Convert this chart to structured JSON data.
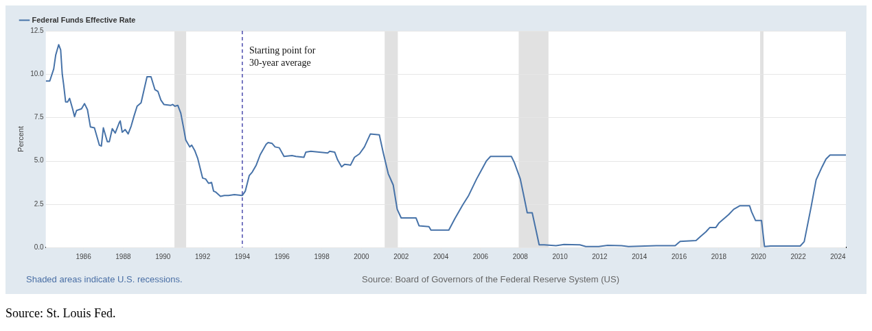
{
  "chart_data": {
    "type": "line",
    "ylabel": "Percent",
    "legend": "top left",
    "grid": "y",
    "xlim": [
      1984.1,
      2024.4
    ],
    "xticks": [
      1986,
      1988,
      1990,
      1992,
      1994,
      1996,
      1998,
      2000,
      2002,
      2004,
      2006,
      2008,
      2010,
      2012,
      2014,
      2016,
      2018,
      2020,
      2022,
      2024
    ],
    "ylim": [
      0,
      12.5
    ],
    "yticks": [
      {
        "value": 0,
        "label": "0.0"
      },
      2.5,
      {
        "value": 5,
        "label": "5.0"
      },
      7.5,
      {
        "value": 10,
        "label": "10.0"
      },
      12.5
    ],
    "series": [
      {
        "name": "Federal Funds Effective Rate",
        "color": "#4672a8",
        "x": [
          1984.1,
          1984.3,
          1984.5,
          1984.6,
          1984.75,
          1984.85,
          1984.93,
          1985.0,
          1985.1,
          1985.2,
          1985.3,
          1985.45,
          1985.55,
          1985.65,
          1985.9,
          1986.05,
          1986.2,
          1986.35,
          1986.55,
          1986.8,
          1986.9,
          1987.0,
          1987.2,
          1987.3,
          1987.45,
          1987.6,
          1987.8,
          1987.85,
          1987.95,
          1988.1,
          1988.25,
          1988.4,
          1988.55,
          1988.7,
          1988.9,
          1989.05,
          1989.2,
          1989.4,
          1989.6,
          1989.75,
          1989.9,
          1990.05,
          1990.4,
          1990.5,
          1990.6,
          1990.75,
          1990.9,
          1991.05,
          1991.15,
          1991.35,
          1991.45,
          1991.6,
          1991.75,
          1992.0,
          1992.15,
          1992.3,
          1992.45,
          1992.55,
          1992.65,
          1992.9,
          1993.1,
          1993.3,
          1993.6,
          1994.0,
          1994.15,
          1994.35,
          1994.5,
          1994.7,
          1994.9,
          1995.2,
          1995.3,
          1995.5,
          1995.65,
          1995.86,
          1996.1,
          1996.5,
          1996.7,
          1997.1,
          1997.2,
          1997.45,
          1998.3,
          1998.4,
          1998.65,
          1998.8,
          1999.0,
          1999.15,
          1999.45,
          1999.65,
          1999.9,
          2000.15,
          2000.45,
          2000.9,
          2001.1,
          2001.35,
          2001.6,
          2001.8,
          2002.0,
          2002.75,
          2002.9,
          2003.4,
          2003.5,
          2004.4,
          2004.7,
          2005.1,
          2005.4,
          2005.8,
          2006.3,
          2006.5,
          2007.55,
          2007.7,
          2008.0,
          2008.2,
          2008.35,
          2008.6,
          2008.8,
          2008.95,
          2009.2,
          2009.8,
          2010.2,
          2011.0,
          2011.3,
          2011.95,
          2012.4,
          2013.1,
          2013.45,
          2014.85,
          2015.8,
          2016.05,
          2016.85,
          2017.1,
          2017.35,
          2017.55,
          2017.85,
          2018.0,
          2018.3,
          2018.5,
          2018.75,
          2019.05,
          2019.55,
          2019.65,
          2019.85,
          2020.15,
          2020.3,
          2020.6,
          2022.1,
          2022.3,
          2022.65,
          2022.9,
          2023.2,
          2023.4,
          2023.6,
          2024.4
        ],
        "values": [
          9.6,
          9.6,
          10.3,
          11.1,
          11.7,
          11.4,
          10.0,
          9.4,
          8.4,
          8.4,
          8.6,
          8.0,
          7.55,
          7.9,
          8.0,
          8.3,
          7.95,
          6.95,
          6.9,
          5.9,
          5.85,
          6.9,
          6.1,
          6.1,
          6.85,
          6.6,
          7.2,
          7.3,
          6.65,
          6.8,
          6.55,
          7.0,
          7.6,
          8.15,
          8.35,
          9.1,
          9.85,
          9.85,
          9.1,
          9.0,
          8.5,
          8.25,
          8.2,
          8.25,
          8.15,
          8.2,
          7.75,
          6.85,
          6.2,
          5.8,
          5.9,
          5.6,
          5.15,
          4.0,
          3.95,
          3.7,
          3.75,
          3.25,
          3.2,
          2.95,
          3.0,
          3.0,
          3.05,
          3.0,
          3.25,
          4.15,
          4.35,
          4.75,
          5.35,
          5.95,
          6.05,
          6.0,
          5.8,
          5.75,
          5.25,
          5.3,
          5.25,
          5.2,
          5.5,
          5.55,
          5.45,
          5.55,
          5.5,
          5.05,
          4.65,
          4.8,
          4.75,
          5.2,
          5.4,
          5.8,
          6.55,
          6.5,
          5.45,
          4.25,
          3.6,
          2.2,
          1.7,
          1.7,
          1.25,
          1.2,
          1.0,
          1.0,
          1.65,
          2.45,
          3.0,
          3.95,
          5.0,
          5.25,
          5.25,
          4.9,
          3.95,
          2.85,
          2.0,
          2.0,
          0.95,
          0.15,
          0.15,
          0.1,
          0.17,
          0.15,
          0.05,
          0.05,
          0.12,
          0.1,
          0.05,
          0.1,
          0.1,
          0.35,
          0.4,
          0.65,
          0.9,
          1.15,
          1.15,
          1.4,
          1.7,
          1.9,
          2.2,
          2.4,
          2.4,
          2.05,
          1.55,
          1.55,
          0.05,
          0.08,
          0.08,
          0.33,
          2.35,
          3.9,
          4.65,
          5.1,
          5.33,
          5.33
        ]
      }
    ],
    "bands": [
      {
        "axis": "x",
        "from": 1990.58,
        "to": 1991.17,
        "color": "#e1e1e1"
      },
      {
        "axis": "x",
        "from": 2001.17,
        "to": 2001.83,
        "color": "#e1e1e1"
      },
      {
        "axis": "x",
        "from": 2007.92,
        "to": 2009.42,
        "color": "#e1e1e1"
      },
      {
        "axis": "x",
        "from": 2020.08,
        "to": 2020.25,
        "color": "#e1e1e1"
      }
    ],
    "ref_lines": [
      {
        "axis": "x",
        "value": 1994,
        "label": "Starting point for 30-year average",
        "color": "#1f1f99",
        "line_style": "dashed"
      }
    ],
    "annotations": [
      "Shaded areas indicate U.S. recessions.",
      "Source: Board of Governors of the Federal Reserve System (US)",
      "Source: St. Louis Fed."
    ]
  }
}
